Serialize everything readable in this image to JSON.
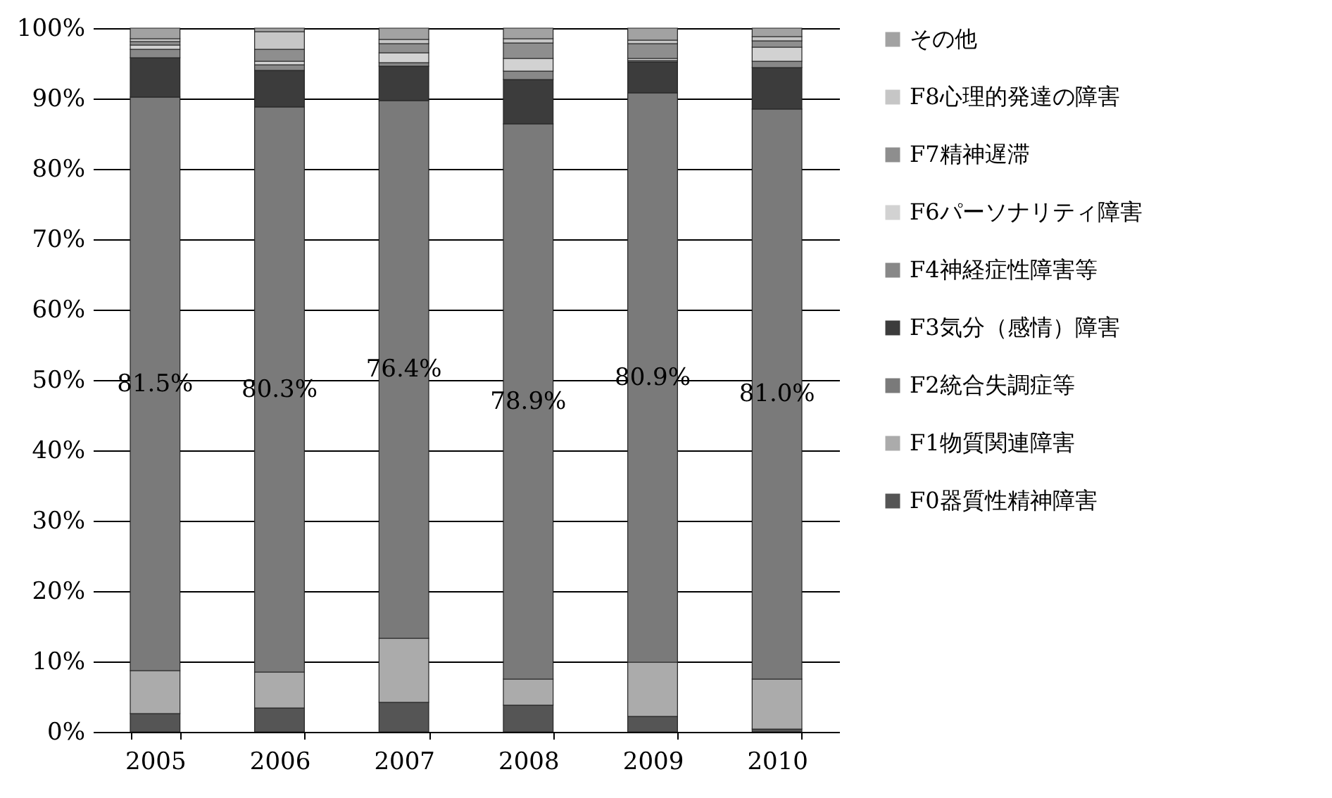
{
  "chart_data": {
    "type": "bar",
    "stacked": true,
    "categories": [
      "2005",
      "2006",
      "2007",
      "2008",
      "2009",
      "2010"
    ],
    "series": [
      {
        "name": "F0器質性精神障害",
        "color": "#555555",
        "values": [
          2.6,
          3.4,
          4.2,
          3.8,
          2.2,
          0.4
        ]
      },
      {
        "name": "F1物質関連障害",
        "color": "#ababab",
        "values": [
          6.1,
          5.1,
          9.1,
          3.7,
          7.7,
          7.1
        ]
      },
      {
        "name": "F2統合失調症等",
        "color": "#7a7a7a",
        "values": [
          81.5,
          80.3,
          76.4,
          78.9,
          80.9,
          81.0
        ],
        "value_labels": [
          "81.5%",
          "80.3%",
          "76.4%",
          "78.9%",
          "80.9%",
          "81.0%"
        ]
      },
      {
        "name": "F3気分（感情）障害",
        "color": "#3c3c3c",
        "values": [
          5.6,
          5.2,
          4.9,
          6.3,
          4.4,
          5.9
        ]
      },
      {
        "name": "F4神経症性障害等",
        "color": "#888888",
        "values": [
          1.2,
          0.8,
          0.5,
          1.2,
          0.2,
          0.9
        ]
      },
      {
        "name": "F6パーソナリティ障害",
        "color": "#d2d2d2",
        "values": [
          0.6,
          0.5,
          1.4,
          1.8,
          0.3,
          2.0
        ]
      },
      {
        "name": "F7精神遅滞",
        "color": "#8e8e8e",
        "values": [
          0.5,
          1.7,
          1.3,
          2.2,
          2.1,
          0.9
        ]
      },
      {
        "name": "F8心理的発達の障害",
        "color": "#c6c6c6",
        "values": [
          0.4,
          2.5,
          0.6,
          0.6,
          0.5,
          0.6
        ]
      },
      {
        "name": "その他",
        "color": "#a2a2a2",
        "values": [
          1.5,
          0.5,
          1.6,
          1.5,
          1.7,
          1.2
        ]
      }
    ],
    "ylim": [
      0,
      100
    ],
    "yticks": [
      {
        "value": 0,
        "label": "0%"
      },
      {
        "value": 10,
        "label": "10%"
      },
      {
        "value": 20,
        "label": "20%"
      },
      {
        "value": 30,
        "label": "30%"
      },
      {
        "value": 40,
        "label": "40%"
      },
      {
        "value": 50,
        "label": "50%"
      },
      {
        "value": 60,
        "label": "60%"
      },
      {
        "value": 70,
        "label": "70%"
      },
      {
        "value": 80,
        "label": "80%"
      },
      {
        "value": 90,
        "label": "90%"
      },
      {
        "value": 100,
        "label": "100%"
      }
    ],
    "grid": "y",
    "legend": "right"
  }
}
